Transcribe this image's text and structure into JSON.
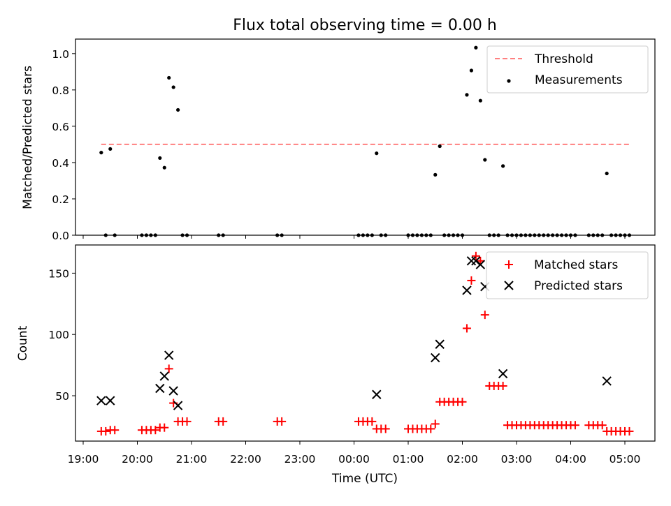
{
  "title": "Flux total observing time = 0.00 h",
  "chart_data": [
    {
      "type": "scatter",
      "ylabel": "Matched/Predicted stars",
      "xlim": [
        "19:00",
        "05:00"
      ],
      "ylim": [
        0,
        1.08
      ],
      "yticks": [
        "0.0",
        "0.2",
        "0.4",
        "0.6",
        "0.8",
        "1.0"
      ],
      "legend_position": "top-right",
      "threshold": {
        "name": "Threshold",
        "y": 0.5,
        "x_range": [
          "19:20",
          "05:05"
        ],
        "color": "#ff8080",
        "style": "dashed"
      },
      "series": [
        {
          "name": "Measurements",
          "color": "#000000",
          "points": [
            [
              "19:20",
              0.455
            ],
            [
              "19:25",
              0.0
            ],
            [
              "19:30",
              0.475
            ],
            [
              "19:35",
              0.0
            ],
            [
              "20:05",
              0.0
            ],
            [
              "20:10",
              0.0
            ],
            [
              "20:15",
              0.0
            ],
            [
              "20:20",
              0.0
            ],
            [
              "20:25",
              0.425
            ],
            [
              "20:30",
              0.372
            ],
            [
              "20:35",
              0.867
            ],
            [
              "20:40",
              0.815
            ],
            [
              "20:45",
              0.69
            ],
            [
              "20:50",
              0.0
            ],
            [
              "20:55",
              0.0
            ],
            [
              "21:30",
              0.0
            ],
            [
              "21:35",
              0.0
            ],
            [
              "22:35",
              0.0
            ],
            [
              "22:40",
              0.0
            ],
            [
              "00:05",
              0.0
            ],
            [
              "00:10",
              0.0
            ],
            [
              "00:15",
              0.0
            ],
            [
              "00:20",
              0.0
            ],
            [
              "00:25",
              0.451
            ],
            [
              "00:30",
              0.0
            ],
            [
              "00:35",
              0.0
            ],
            [
              "01:00",
              0.0
            ],
            [
              "01:05",
              0.0
            ],
            [
              "01:10",
              0.0
            ],
            [
              "01:15",
              0.0
            ],
            [
              "01:20",
              0.0
            ],
            [
              "01:25",
              0.0
            ],
            [
              "01:30",
              0.333
            ],
            [
              "01:35",
              0.49
            ],
            [
              "01:40",
              0.0
            ],
            [
              "01:45",
              0.0
            ],
            [
              "01:50",
              0.0
            ],
            [
              "01:55",
              0.0
            ],
            [
              "02:00",
              0.0
            ],
            [
              "02:05",
              0.773
            ],
            [
              "02:10",
              0.907
            ],
            [
              "02:15",
              1.033
            ],
            [
              "02:20",
              0.741
            ],
            [
              "02:25",
              0.415
            ],
            [
              "02:30",
              0.0
            ],
            [
              "02:35",
              0.0
            ],
            [
              "02:40",
              0.0
            ],
            [
              "02:45",
              0.381
            ],
            [
              "02:50",
              0.0
            ],
            [
              "02:55",
              0.0
            ],
            [
              "03:00",
              0.0
            ],
            [
              "03:05",
              0.0
            ],
            [
              "03:10",
              0.0
            ],
            [
              "03:15",
              0.0
            ],
            [
              "03:20",
              0.0
            ],
            [
              "03:25",
              0.0
            ],
            [
              "03:30",
              0.0
            ],
            [
              "03:35",
              0.0
            ],
            [
              "03:40",
              0.0
            ],
            [
              "03:45",
              0.0
            ],
            [
              "03:50",
              0.0
            ],
            [
              "03:55",
              0.0
            ],
            [
              "04:00",
              0.0
            ],
            [
              "04:05",
              0.0
            ],
            [
              "04:20",
              0.0
            ],
            [
              "04:25",
              0.0
            ],
            [
              "04:30",
              0.0
            ],
            [
              "04:35",
              0.0
            ],
            [
              "04:40",
              0.34
            ],
            [
              "04:45",
              0.0
            ],
            [
              "04:50",
              0.0
            ],
            [
              "04:55",
              0.0
            ],
            [
              "05:00",
              0.0
            ],
            [
              "05:05",
              0.0
            ]
          ]
        }
      ]
    },
    {
      "type": "scatter",
      "xlabel": "Time (UTC)",
      "ylabel": "Count",
      "xlim": [
        "19:00",
        "05:00"
      ],
      "ylim": [
        13,
        173
      ],
      "yticks": [
        "50",
        "100",
        "150"
      ],
      "xticks": [
        "19:00",
        "20:00",
        "21:00",
        "22:00",
        "23:00",
        "00:00",
        "01:00",
        "02:00",
        "03:00",
        "04:00",
        "05:00"
      ],
      "legend_position": "top-right",
      "series": [
        {
          "name": "Matched stars",
          "marker": "plus",
          "color": "#ff0000",
          "points": [
            [
              "19:20",
              21
            ],
            [
              "19:25",
              21
            ],
            [
              "19:30",
              22
            ],
            [
              "19:35",
              22
            ],
            [
              "20:05",
              22
            ],
            [
              "20:10",
              22
            ],
            [
              "20:15",
              22
            ],
            [
              "20:20",
              22
            ],
            [
              "20:25",
              24
            ],
            [
              "20:30",
              24
            ],
            [
              "20:35",
              72
            ],
            [
              "20:40",
              44
            ],
            [
              "20:45",
              29
            ],
            [
              "20:50",
              29
            ],
            [
              "20:55",
              29
            ],
            [
              "21:30",
              29
            ],
            [
              "21:35",
              29
            ],
            [
              "22:35",
              29
            ],
            [
              "22:40",
              29
            ],
            [
              "00:05",
              29
            ],
            [
              "00:10",
              29
            ],
            [
              "00:15",
              29
            ],
            [
              "00:20",
              29
            ],
            [
              "00:25",
              23
            ],
            [
              "00:30",
              23
            ],
            [
              "00:35",
              23
            ],
            [
              "01:00",
              23
            ],
            [
              "01:05",
              23
            ],
            [
              "01:10",
              23
            ],
            [
              "01:15",
              23
            ],
            [
              "01:20",
              23
            ],
            [
              "01:25",
              23
            ],
            [
              "01:30",
              27
            ],
            [
              "01:35",
              45
            ],
            [
              "01:40",
              45
            ],
            [
              "01:45",
              45
            ],
            [
              "01:50",
              45
            ],
            [
              "01:55",
              45
            ],
            [
              "02:00",
              45
            ],
            [
              "02:05",
              105
            ],
            [
              "02:10",
              144
            ],
            [
              "02:15",
              164
            ],
            [
              "02:20",
              160
            ],
            [
              "02:25",
              116
            ],
            [
              "02:30",
              58
            ],
            [
              "02:35",
              58
            ],
            [
              "02:40",
              58
            ],
            [
              "02:45",
              58
            ],
            [
              "02:50",
              26
            ],
            [
              "02:55",
              26
            ],
            [
              "03:00",
              26
            ],
            [
              "03:05",
              26
            ],
            [
              "03:10",
              26
            ],
            [
              "03:15",
              26
            ],
            [
              "03:20",
              26
            ],
            [
              "03:25",
              26
            ],
            [
              "03:30",
              26
            ],
            [
              "03:35",
              26
            ],
            [
              "03:40",
              26
            ],
            [
              "03:45",
              26
            ],
            [
              "03:50",
              26
            ],
            [
              "03:55",
              26
            ],
            [
              "04:00",
              26
            ],
            [
              "04:05",
              26
            ],
            [
              "04:20",
              26
            ],
            [
              "04:25",
              26
            ],
            [
              "04:30",
              26
            ],
            [
              "04:35",
              26
            ],
            [
              "04:40",
              21
            ],
            [
              "04:45",
              21
            ],
            [
              "04:50",
              21
            ],
            [
              "04:55",
              21
            ],
            [
              "05:00",
              21
            ],
            [
              "05:05",
              21
            ]
          ]
        },
        {
          "name": "Predicted stars",
          "marker": "x",
          "color": "#000000",
          "points": [
            [
              "19:20",
              46
            ],
            [
              "19:30",
              46
            ],
            [
              "20:25",
              56
            ],
            [
              "20:30",
              66
            ],
            [
              "20:35",
              83
            ],
            [
              "20:40",
              54
            ],
            [
              "20:45",
              42
            ],
            [
              "00:25",
              51
            ],
            [
              "01:30",
              81
            ],
            [
              "01:35",
              92
            ],
            [
              "02:05",
              136
            ],
            [
              "02:10",
              160
            ],
            [
              "02:15",
              160
            ],
            [
              "02:20",
              157
            ],
            [
              "02:25",
              139
            ],
            [
              "02:45",
              68
            ],
            [
              "04:40",
              62
            ]
          ]
        }
      ]
    }
  ]
}
